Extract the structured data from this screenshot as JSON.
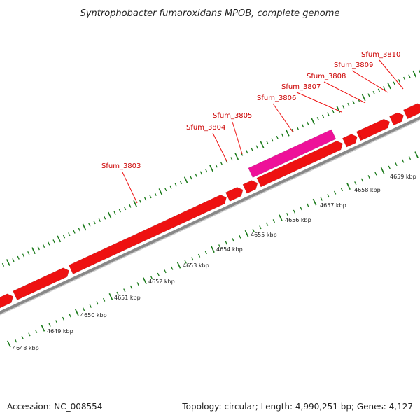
{
  "title": "Syntrophobacter fumaroxidans MPOB, complete genome",
  "footer": {
    "accession": "Accession: NC_008554",
    "stats": "Topology: circular; Length: 4,990,251 bp; Genes: 4,127"
  },
  "colors": {
    "gene": "#ee1111",
    "highlight": "#ee1199",
    "backbone": "#888888",
    "tick": "#1a7a1a",
    "label": "#cc0000"
  },
  "scale_labels": [
    "4648 kbp",
    "4649 kbp",
    "4650 kbp",
    "4651 kbp",
    "4652 kbp",
    "4653 kbp",
    "4654 kbp",
    "4655 kbp",
    "4656 kbp",
    "4657 kbp",
    "4658 kbp",
    "4659 kbp"
  ],
  "gene_labels": [
    "Sfum_3803",
    "Sfum_3804",
    "Sfum_3805",
    "Sfum_3806",
    "Sfum_3807",
    "Sfum_3808",
    "Sfum_3809",
    "Sfum_3810"
  ]
}
